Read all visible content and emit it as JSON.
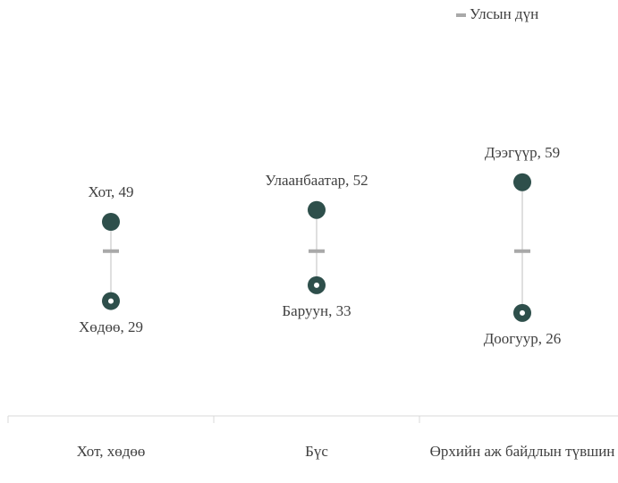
{
  "chart_data": {
    "type": "dot_range",
    "categories": [
      "Хот, хөдөө",
      "Бүс",
      "Өрхийн аж байдлын түвшин"
    ],
    "series": [
      {
        "color": "#2e4f4b",
        "values": [
          49,
          52,
          59
        ],
        "value_labels": [
          "Хот, 49",
          "Улаанбаатар, 52",
          "Дээгүүр, 59"
        ]
      },
      {
        "color": "#2e4f4b",
        "values": [
          29,
          33,
          26
        ],
        "value_labels": [
          "Хөдөө, 29",
          "Баруун, 33",
          "Доогуур, 26"
        ]
      },
      {
        "name": "Улсын дүн",
        "color": "#a9a9a9",
        "values": [
          41.6,
          41.6,
          41.6
        ]
      }
    ],
    "ylim": [
      0,
      105
    ]
  }
}
